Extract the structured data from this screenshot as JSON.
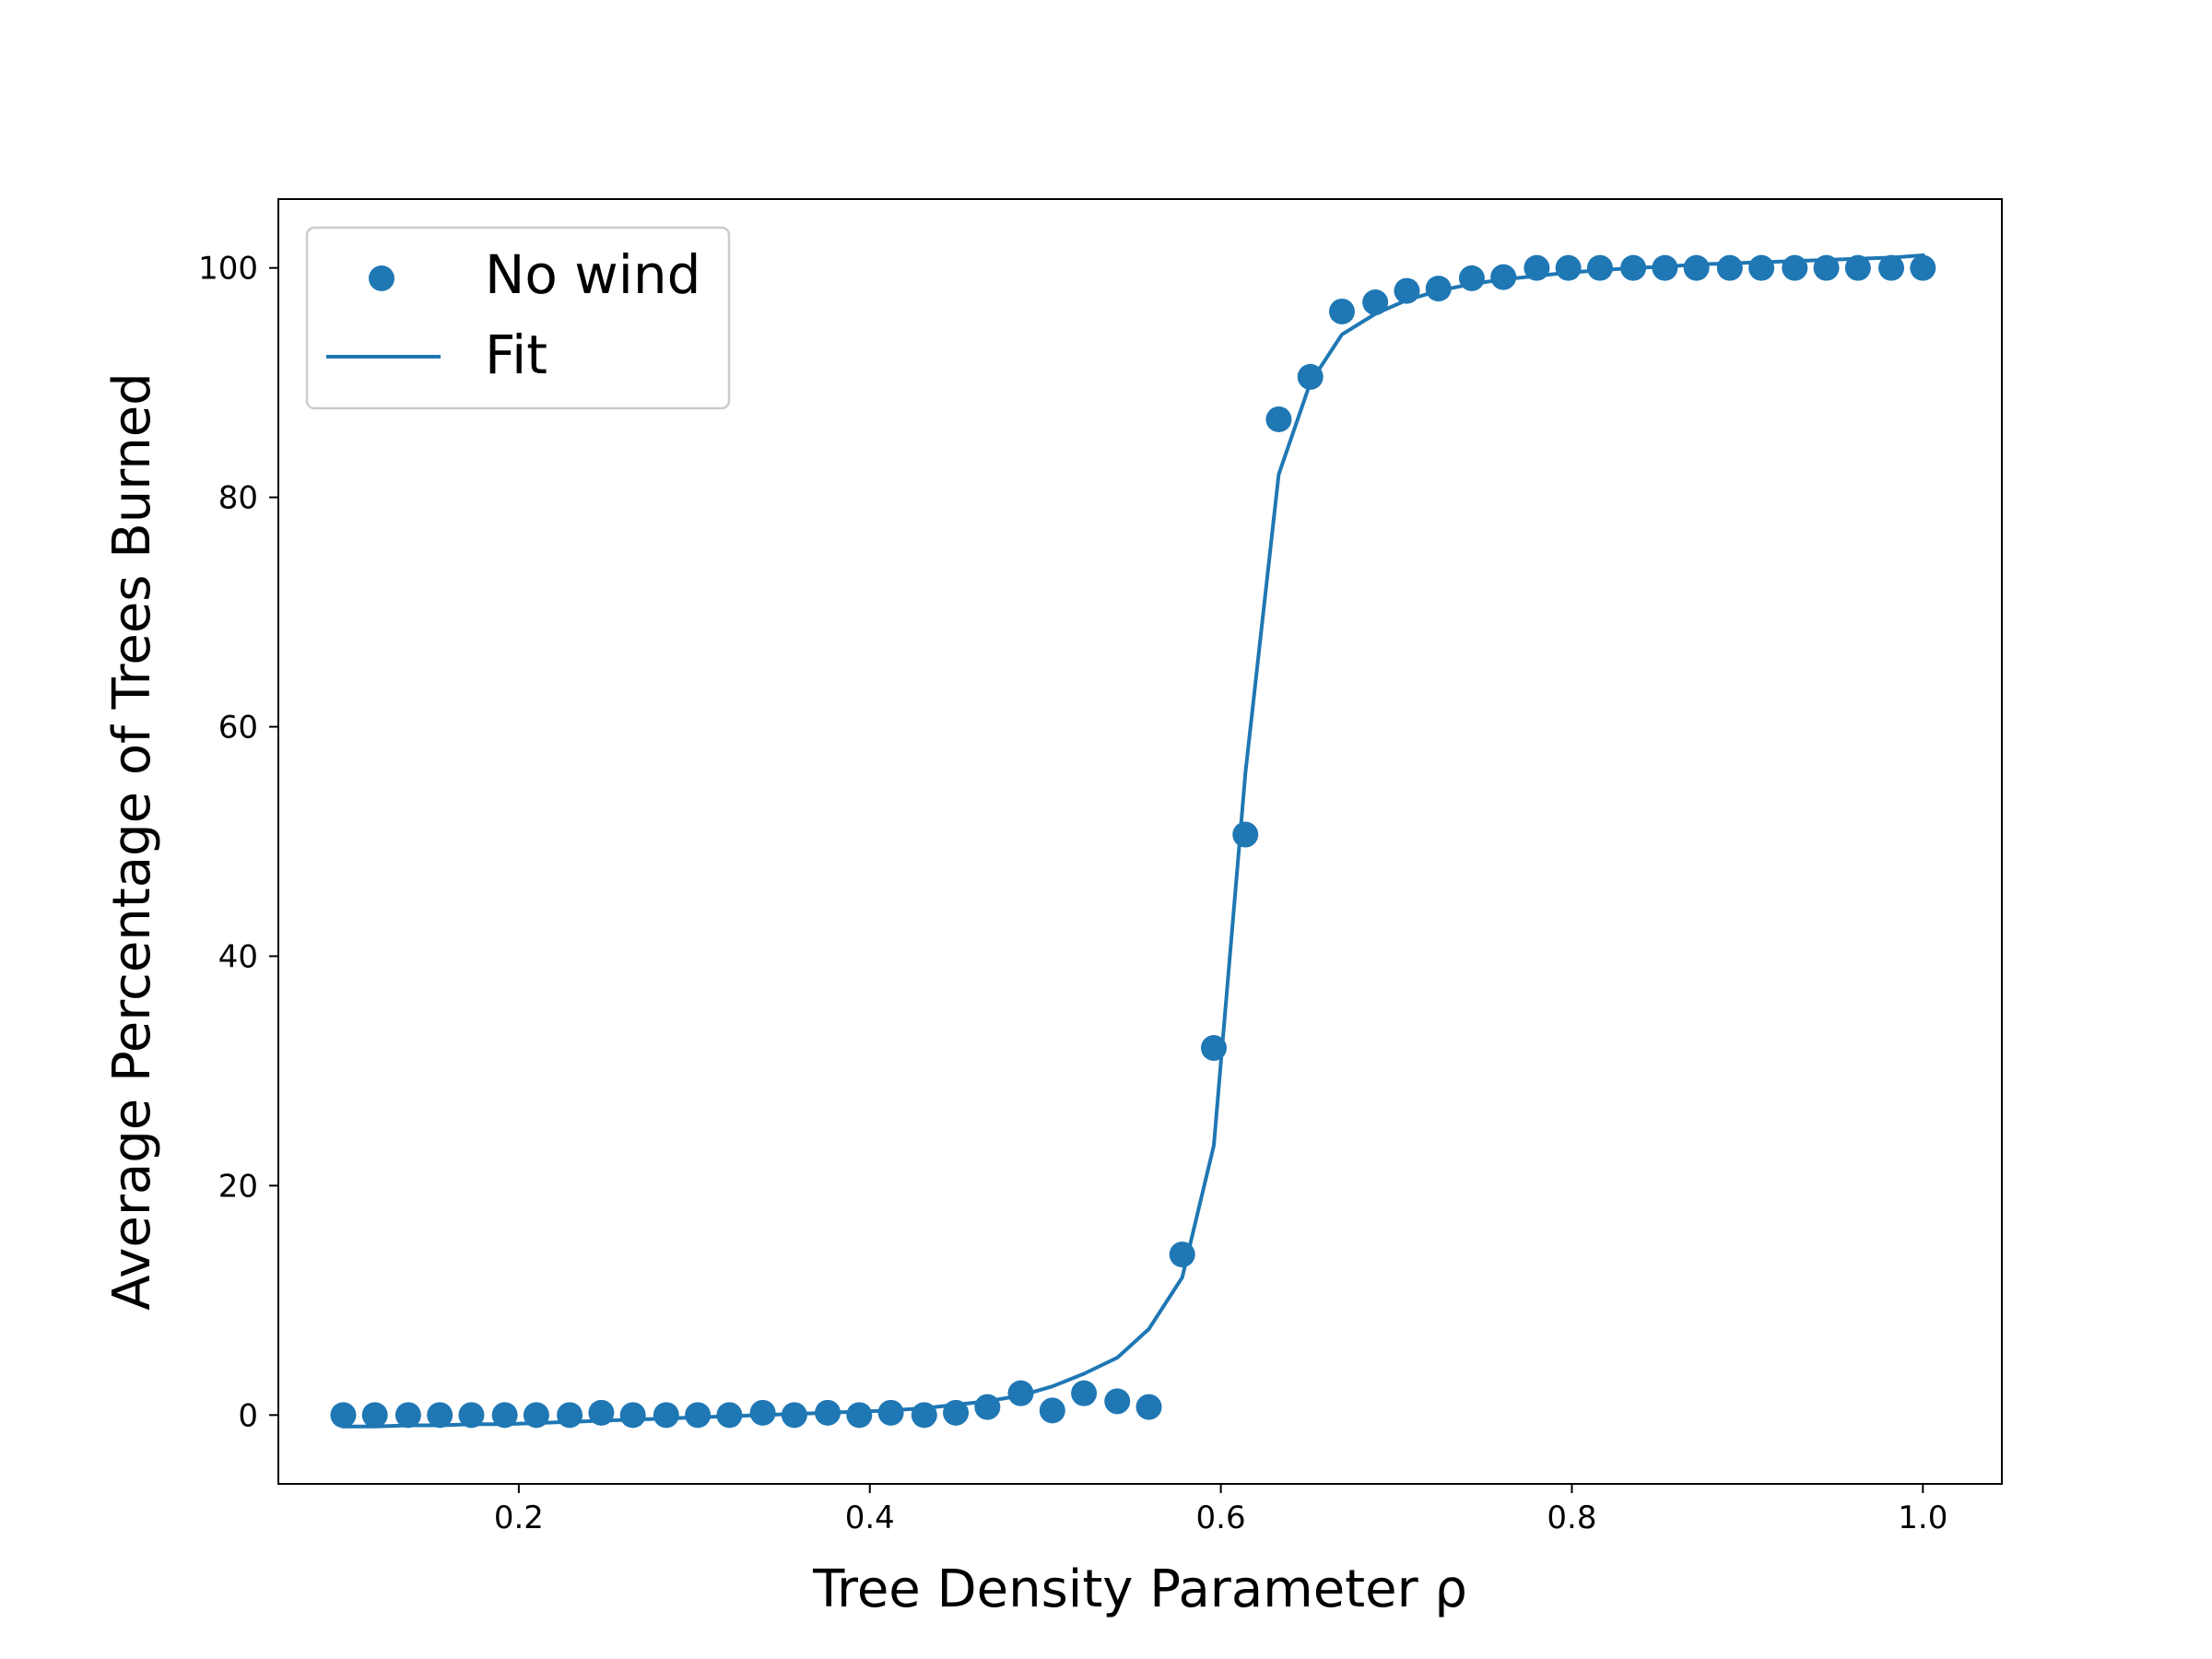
{
  "chart_data": {
    "type": "scatter",
    "title": "",
    "xlabel": "Tree Density Parameter ρ",
    "ylabel": "Average Percentage of Trees Burned",
    "xlim": [
      0.063,
      1.045
    ],
    "ylim": [
      -6,
      106
    ],
    "xticks": [
      0.2,
      0.4,
      0.6,
      0.8,
      1.0
    ],
    "xtick_labels": [
      "0.2",
      "0.4",
      "0.6",
      "0.8",
      "1.0"
    ],
    "yticks": [
      0,
      20,
      40,
      60,
      80,
      100
    ],
    "ytick_labels": [
      "0",
      "20",
      "40",
      "60",
      "80",
      "100"
    ],
    "grid": false,
    "legend_position": "upper-left",
    "color": "#1f77b4",
    "series": [
      {
        "name": "No wind",
        "kind": "scatter",
        "x": [
          0.1,
          0.118,
          0.137,
          0.155,
          0.173,
          0.192,
          0.21,
          0.229,
          0.247,
          0.265,
          0.284,
          0.302,
          0.32,
          0.339,
          0.357,
          0.376,
          0.394,
          0.412,
          0.431,
          0.449,
          0.467,
          0.486,
          0.504,
          0.522,
          0.541,
          0.559,
          0.578,
          0.596,
          0.614,
          0.633,
          0.651,
          0.669,
          0.688,
          0.706,
          0.724,
          0.743,
          0.761,
          0.78,
          0.798,
          0.816,
          0.835,
          0.853,
          0.871,
          0.89,
          0.908,
          0.927,
          0.945,
          0.963,
          0.982,
          1.0
        ],
        "y": [
          0.0,
          0.0,
          0.0,
          0.0,
          0.0,
          0.0,
          0.0,
          0.0,
          0.2,
          0.0,
          0.0,
          0.0,
          0.0,
          0.2,
          0.0,
          0.2,
          0.0,
          0.2,
          0.0,
          0.2,
          0.7,
          1.9,
          0.4,
          1.9,
          1.2,
          0.7,
          14.0,
          32.0,
          50.6,
          86.8,
          90.5,
          96.2,
          97.0,
          98.0,
          98.2,
          99.1,
          99.2,
          100.0,
          100.0,
          100.0,
          100.0,
          100.0,
          100.0,
          100.0,
          100.0,
          100.0,
          100.0,
          100.0,
          100.0,
          100.0
        ]
      },
      {
        "name": "Fit",
        "kind": "line",
        "x": [
          0.1,
          0.118,
          0.137,
          0.155,
          0.173,
          0.192,
          0.21,
          0.229,
          0.247,
          0.265,
          0.284,
          0.302,
          0.32,
          0.339,
          0.357,
          0.376,
          0.394,
          0.412,
          0.431,
          0.449,
          0.467,
          0.486,
          0.504,
          0.522,
          0.541,
          0.559,
          0.578,
          0.596,
          0.614,
          0.633,
          0.651,
          0.669,
          0.688,
          0.706,
          0.724,
          0.743,
          0.761,
          0.78,
          0.798,
          0.816,
          0.835,
          0.853,
          0.871,
          0.89,
          0.908,
          0.927,
          0.945,
          0.963,
          0.982,
          1.0
        ],
        "y": [
          -1.0,
          -1.0,
          -0.9,
          -0.9,
          -0.8,
          -0.8,
          -0.7,
          -0.6,
          -0.5,
          -0.4,
          -0.3,
          -0.2,
          -0.1,
          0.0,
          0.1,
          0.2,
          0.3,
          0.4,
          0.6,
          0.9,
          1.2,
          1.7,
          2.5,
          3.6,
          5.0,
          7.5,
          12.0,
          23.5,
          56.0,
          82.0,
          90.0,
          94.2,
          96.0,
          97.2,
          98.0,
          98.6,
          99.0,
          99.3,
          99.6,
          99.8,
          100.0,
          100.1,
          100.3,
          100.4,
          100.5,
          100.6,
          100.7,
          100.8,
          100.9,
          101.1
        ]
      }
    ]
  }
}
